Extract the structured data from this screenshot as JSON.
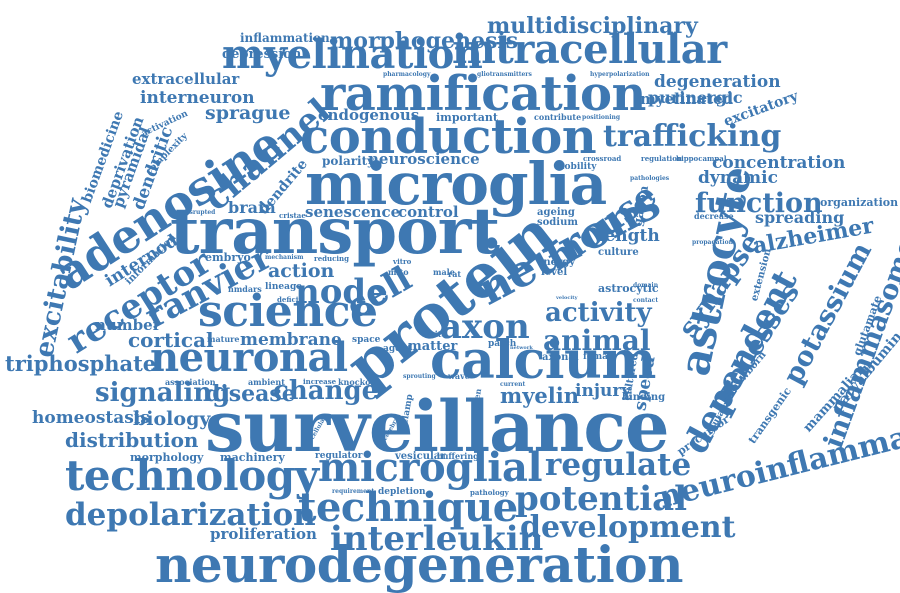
{
  "color": "#3e78b2",
  "words": {
    "surveillance": "surveillance",
    "transport": "transport",
    "microglia": "microglia",
    "protein": "protein",
    "conduction": "conduction",
    "ramification": "ramification",
    "calcium": "calcium",
    "neurodegeneration": "neurodegeneration",
    "adenosine": "adenosine",
    "myelination": "myelination",
    "intracellular": "intracellular",
    "neuronal": "neuronal",
    "science": "science",
    "technology": "technology",
    "microglial": "microglial",
    "technique": "technique",
    "neuronal_alt": "neurons",
    "neurocyte": "neurocyte",
    "astrocyte": "astrocyte",
    "mouse": "mouse",
    "channel": "channel",
    "dependent": "dependent",
    "receptor": "receptor",
    "ranvier": "ranvier",
    "axon": "axon",
    "node": "node",
    "cell": "cell",
    "potential": "potential",
    "interleukin": "interleukin",
    "depolarization": "depolarization",
    "development": "development",
    "regulate": "regulate",
    "neuroinflammation": "neuroinflammation",
    "processes": "processes",
    "synapse": "synapse",
    "potassium": "potassium",
    "inflammasome": "inflammasome",
    "trafficking": "trafficking",
    "function": "function",
    "morphogenesis": "morphogenesis",
    "multidisciplinary": "multidisciplinary",
    "signaling": "signaling",
    "excitability": "excitability",
    "triphosphate": "triphosphate",
    "activity": "activity",
    "animal": "animal",
    "disease": "disease",
    "change": "change",
    "distribution": "distribution",
    "homeostasis": "homeostasis",
    "biology": "biology",
    "myelin": "myelin",
    "injury": "injury",
    "cortical": "cortical",
    "membrane": "membrane",
    "action": "action",
    "length": "length",
    "speed": "speed",
    "dynamic": "dynamic",
    "concentration": "concentration",
    "spreading": "spreading",
    "alzheimer": "alzheimer",
    "degeneration": "degeneration",
    "purinergic": "purinergic",
    "myelinated": "myelinated",
    "excitatory": "excitatory",
    "interneuron": "interneuron",
    "sprague": "sprague",
    "extracellular": "extracellular",
    "dendritic": "dendritic",
    "pyramidal": "pyramidal",
    "deprivation": "deprivation",
    "biomedicine": "biomedicine",
    "internode": "internode",
    "number": "number",
    "brain": "brain",
    "dendrite": "dendrite",
    "senescence": "senescence",
    "control": "control",
    "neuroscience": "neuroscience",
    "polarity": "polarity",
    "endogenous": "endogenous",
    "important": "important",
    "proliferation": "proliferation",
    "morphology": "morphology",
    "machinery": "machinery",
    "vesicular": "vesicular",
    "inflammation": "inflammation",
    "depression": "depression",
    "mammalian": "mammalian",
    "parvalbumin": "parvalbumin",
    "glutamate": "glutamate",
    "transgenic": "transgenic",
    "precursor": "precursor",
    "newborn": "newborn",
    "cultured": "cultured",
    "astrocytic": "astrocytic",
    "gabon": "gabon",
    "glucose": "glucose",
    "organization": "organization",
    "extension": "extension",
    "embryo": "embryo",
    "lineage": "lineage",
    "information": "information",
    "culture": "culture",
    "ageing": "ageing",
    "sodium": "sodium",
    "energy": "energy",
    "level": "level",
    "matter": "matter",
    "white": "white",
    "wave": "wave",
    "oxygen": "oxygen",
    "patch": "patch",
    "axonal": "axonal",
    "female": "female",
    "binding": "binding",
    "clamp": "clamp",
    "space": "space",
    "mature": "mature",
    "ambient": "ambient",
    "association": "association",
    "regulator": "regulator",
    "depletion": "depletion",
    "buffering": "buffering",
    "pathology": "pathology",
    "requirement": "requirement",
    "knockout": "knockout",
    "increase": "increase",
    "mobility": "mobility",
    "crossroad": "crossroad",
    "regulation": "regulation",
    "hippocampal": "hippocampal",
    "pathologies": "pathologies",
    "decrease": "decrease",
    "propagation": "propagation",
    "contact": "contact",
    "domain": "domain",
    "velocity": "velocity",
    "activation": "activation",
    "complexity": "complexity",
    "pharmacology": "pharmacology",
    "gliotransmitters": "gliotransmitters",
    "hyperpolarization": "hyperpolarization",
    "contribute": "contribute",
    "positioning": "positioning",
    "agent": "agent",
    "disrupted": "disrupted",
    "cristae": "cristae",
    "mechanism": "mechanism",
    "reducing": "reducing",
    "nmdars": "nmdars",
    "deficit": "deficit",
    "cellular": "cellular",
    "current": "current",
    "network": "network",
    "cerebral": "cerebral",
    "vitro": "vitro",
    "rat": "rat",
    "male": "male",
    "mito": "mito",
    "sprouting": "sprouting",
    "glutamic": "glutamic"
  }
}
